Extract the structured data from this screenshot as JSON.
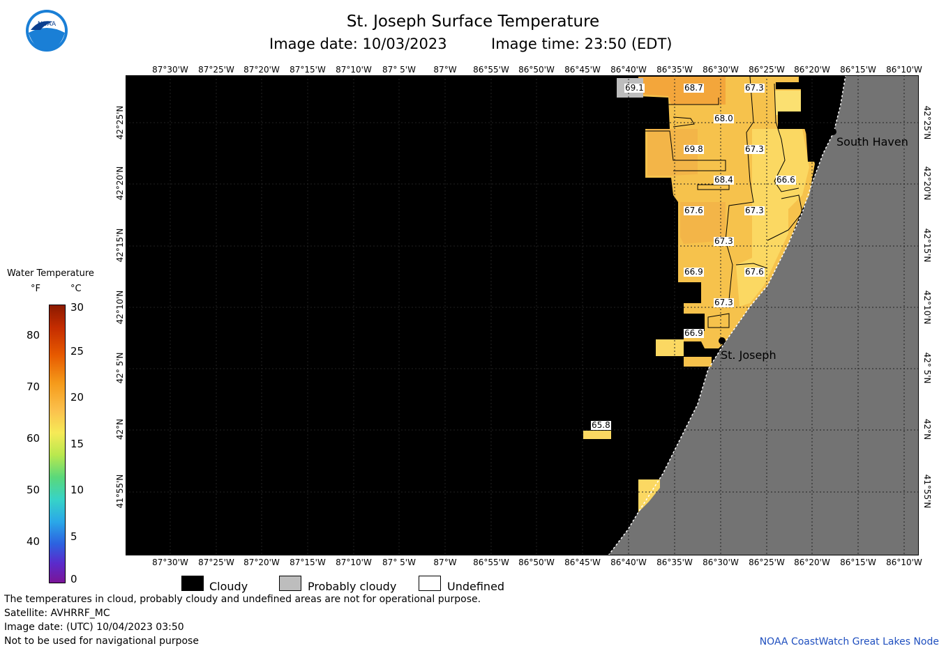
{
  "header": {
    "title": "St. Joseph Surface Temperature",
    "image_date": "Image date: 10/03/2023",
    "image_time": "Image time: 23:50 (EDT)"
  },
  "map": {
    "lon_labels": [
      "87°30'W",
      "87°25'W",
      "87°20'W",
      "87°15'W",
      "87°10'W",
      "87° 5'W",
      "87°W",
      "86°55'W",
      "86°50'W",
      "86°45'W",
      "86°40'W",
      "86°35'W",
      "86°30'W",
      "86°25'W",
      "86°20'W",
      "86°15'W",
      "86°10'W"
    ],
    "lat_labels": [
      "42°25'N",
      "42°20'N",
      "42°15'N",
      "42°10'N",
      "42° 5'N",
      "42°N",
      "41°55'N"
    ],
    "temp_labels": [
      "69.1",
      "68.7",
      "67.3",
      "68.0",
      "69.8",
      "67.3",
      "68.4",
      "66.6",
      "67.6",
      "67.3",
      "67.3",
      "66.9",
      "67.6",
      "67.3",
      "66.9",
      "65.8"
    ],
    "cities": [
      "South Haven",
      "St. Joseph"
    ],
    "colors": {
      "cloud": "#000000",
      "land": "#737373",
      "water_warm": "#f6c24c",
      "water_hot": "#f3a63b",
      "water_light": "#fbe071",
      "probably_cloudy": "#bdbdbd"
    }
  },
  "legend": {
    "title": "Water Temperature",
    "unit_f": "°F",
    "unit_c": "°C",
    "f_ticks": [
      "80",
      "70",
      "60",
      "50",
      "40"
    ],
    "c_ticks": [
      "30",
      "25",
      "20",
      "15",
      "10",
      "5",
      "0"
    ],
    "items": [
      {
        "label": "Cloudy",
        "color": "#000000"
      },
      {
        "label": "Probably cloudy",
        "color": "#bdbdbd"
      },
      {
        "label": "Undefined",
        "color": "#ffffff"
      }
    ]
  },
  "footer": {
    "note": "The temperatures in cloud, probably cloudy and undefined areas are not for operational purpose.",
    "satellite": "Satellite: AVHRRF_MC",
    "utc_date": "Image date: (UTC) 10/04/2023  03:50",
    "navigation": "Not to be used for navigational purpose",
    "credit": "NOAA CoastWatch Great Lakes Node"
  }
}
